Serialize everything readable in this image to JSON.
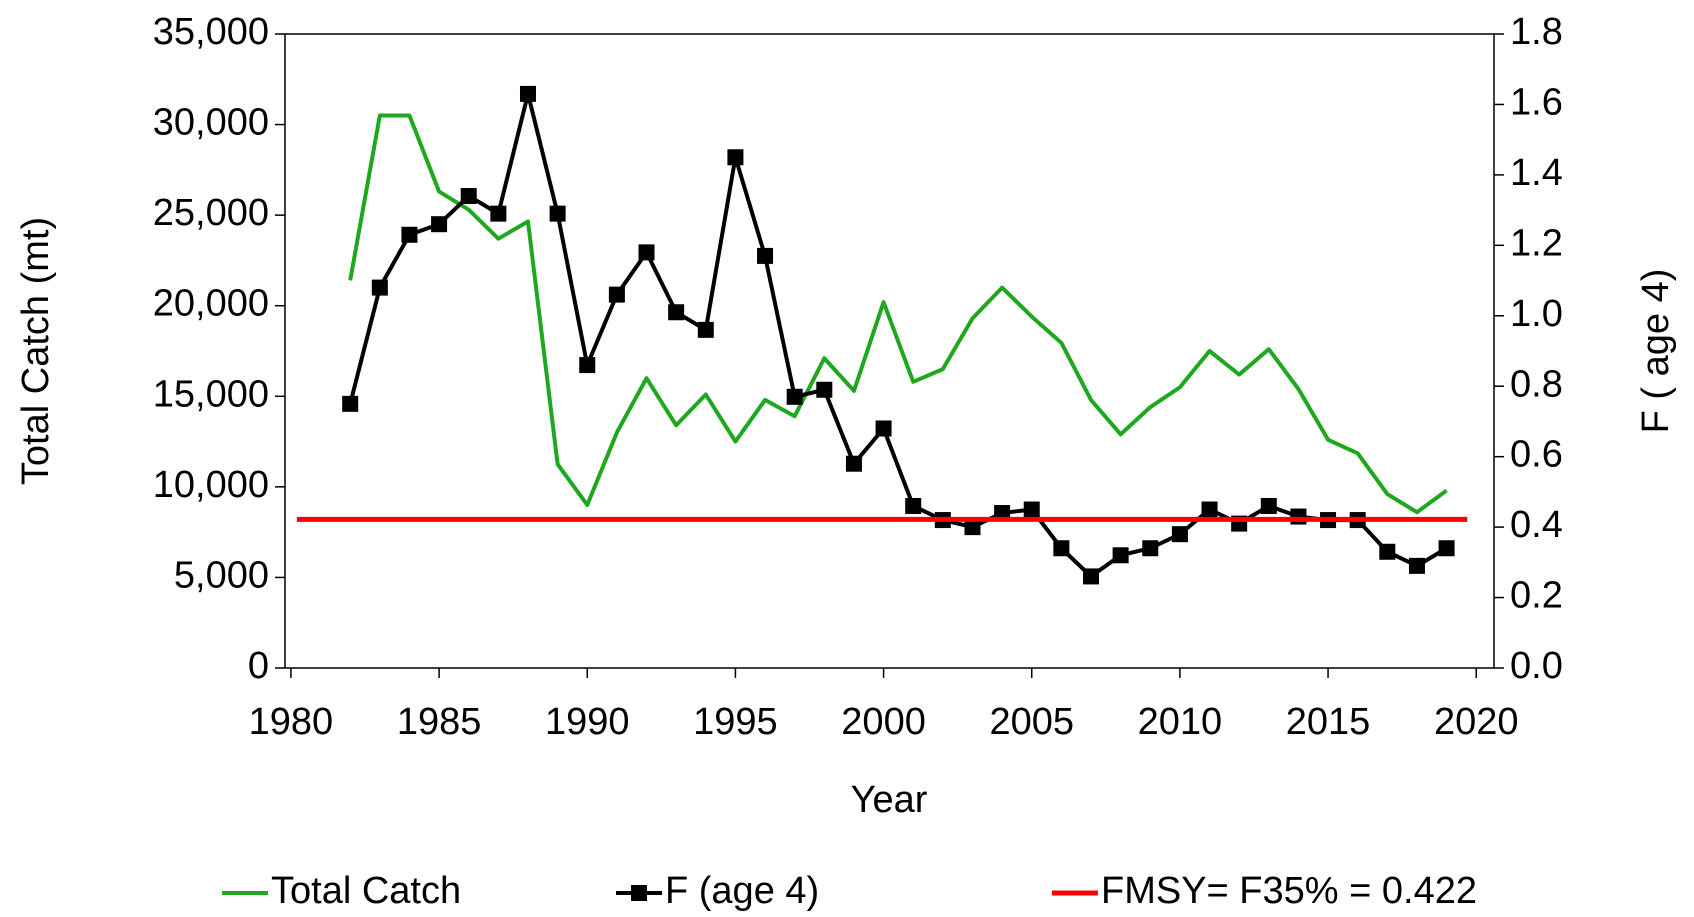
{
  "chart_data": {
    "type": "line",
    "xlabel": "Year",
    "ylabel": "Total Catch (mt)",
    "y2label": "F ( age 4)",
    "x": [
      1982,
      1983,
      1984,
      1985,
      1986,
      1987,
      1988,
      1989,
      1990,
      1991,
      1992,
      1993,
      1994,
      1995,
      1996,
      1997,
      1998,
      1999,
      2000,
      2001,
      2002,
      2003,
      2004,
      2005,
      2006,
      2007,
      2008,
      2009,
      2010,
      2011,
      2012,
      2013,
      2014,
      2015,
      2016,
      2017,
      2018,
      2019
    ],
    "series": [
      {
        "name": "Total Catch",
        "color": "#1fa81f",
        "values": [
          21400,
          30500,
          30500,
          26300,
          25300,
          23700,
          24650,
          11250,
          9000,
          13000,
          16000,
          13400,
          15100,
          12500,
          14800,
          13900,
          17100,
          15300,
          20200,
          15800,
          16500,
          19300,
          21000,
          19400,
          17950,
          14800,
          12900,
          14400,
          15500,
          17500,
          16200,
          17600,
          15400,
          12600,
          11850,
          9600,
          8600,
          9800
        ]
      },
      {
        "name": "F (age 4)",
        "color": "#000000",
        "axis": "y2",
        "marker": "square",
        "values": [
          0.75,
          1.08,
          1.23,
          1.26,
          1.34,
          1.29,
          1.63,
          1.29,
          0.86,
          1.06,
          1.18,
          1.01,
          0.96,
          1.45,
          1.17,
          0.77,
          0.79,
          0.58,
          0.68,
          0.46,
          0.42,
          0.4,
          0.44,
          0.45,
          0.34,
          0.26,
          0.32,
          0.34,
          0.38,
          0.45,
          0.41,
          0.46,
          0.43,
          0.42,
          0.42,
          0.33,
          0.29,
          0.34
        ]
      },
      {
        "name": "FMSY= F35% = 0.422",
        "color": "#ff0000",
        "axis": "y2",
        "x": [
          1980.2,
          2019.7
        ],
        "values": [
          0.422,
          0.422
        ]
      }
    ],
    "xlim": [
      1979.8,
      2020.6
    ],
    "xticks": [
      1980,
      1985,
      1990,
      1995,
      2000,
      2005,
      2010,
      2015,
      2020
    ],
    "ylim": [
      0,
      35000
    ],
    "yticks": [
      0,
      {
        "value": 5000,
        "label": "5,000"
      },
      {
        "value": 10000,
        "label": "10,000"
      },
      {
        "value": 15000,
        "label": "15,000"
      },
      {
        "value": 20000,
        "label": "20,000"
      },
      {
        "value": 25000,
        "label": "25,000"
      },
      {
        "value": 30000,
        "label": "30,000"
      },
      {
        "value": 35000,
        "label": "35,000"
      }
    ],
    "y2lim": [
      0,
      1.8
    ],
    "y2ticks": [
      {
        "value": 0,
        "label": "0.0"
      },
      0.2,
      0.4,
      0.6,
      0.8,
      {
        "value": 1,
        "label": "1.0"
      },
      1.2,
      1.4,
      1.6,
      1.8
    ],
    "grid": false,
    "legend": "bottom"
  }
}
